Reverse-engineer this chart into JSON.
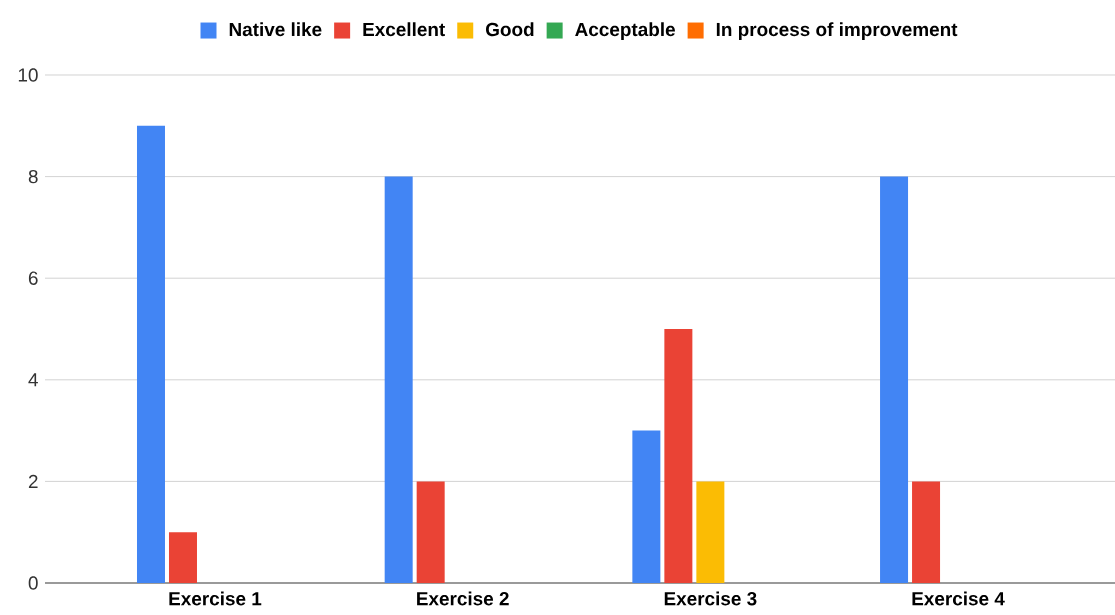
{
  "chart_data": {
    "type": "bar",
    "categories": [
      "Exercise 1",
      "Exercise 2",
      "Exercise 3",
      "Exercise 4"
    ],
    "series": [
      {
        "name": "Native like",
        "color": "#4285f4",
        "values": [
          9,
          8,
          3,
          8
        ]
      },
      {
        "name": "Excellent",
        "color": "#ea4335",
        "values": [
          1,
          2,
          5,
          2
        ]
      },
      {
        "name": "Good",
        "color": "#fbbc04",
        "values": [
          0,
          0,
          2,
          0
        ]
      },
      {
        "name": "Acceptable",
        "color": "#34a853",
        "values": [
          0,
          0,
          0,
          0
        ]
      },
      {
        "name": "In process of improvement",
        "color": "#ff6d01",
        "values": [
          0,
          0,
          0,
          0
        ]
      }
    ],
    "ylim": [
      0,
      10
    ],
    "yticks": [
      0,
      2,
      4,
      6,
      8,
      10
    ],
    "grid": "y",
    "legend": "top"
  }
}
